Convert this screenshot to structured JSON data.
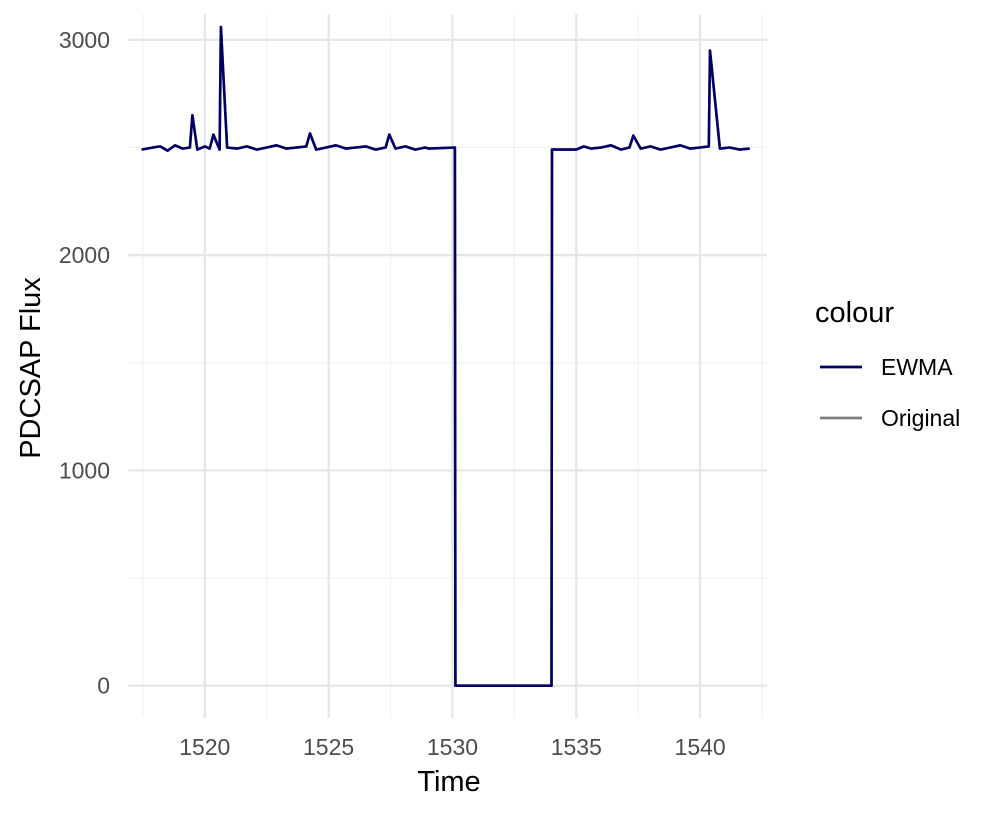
{
  "chart_data": {
    "type": "line",
    "title": "",
    "xlabel": "Time",
    "ylabel": "PDCSAP Flux",
    "xlim": [
      1516.9,
      1542.7
    ],
    "ylim": [
      -150,
      3120
    ],
    "x_ticks": [
      1520,
      1525,
      1530,
      1535,
      1540
    ],
    "x_minor_ticks": [
      1517.5,
      1522.5,
      1527.5,
      1532.5,
      1537.5,
      1542.5
    ],
    "y_ticks": [
      0,
      1000,
      2000,
      3000
    ],
    "y_minor_ticks": [
      500,
      1500,
      2500
    ],
    "grid": true,
    "legend": {
      "title": "colour",
      "position": "right",
      "entries": [
        {
          "label": "EWMA",
          "color": "#000066"
        },
        {
          "label": "Original",
          "color": "#808080"
        }
      ]
    },
    "series": [
      {
        "name": "Original",
        "color": "#808080",
        "x": [
          1517.45,
          1517.9,
          1518.2,
          1518.5,
          1518.8,
          1519.1,
          1519.4,
          1519.5,
          1519.7,
          1520.0,
          1520.2,
          1520.35,
          1520.6,
          1520.65,
          1520.9,
          1521.3,
          1521.7,
          1522.1,
          1522.5,
          1522.9,
          1523.3,
          1523.7,
          1524.1,
          1524.25,
          1524.5,
          1524.9,
          1525.3,
          1525.7,
          1526.1,
          1526.5,
          1526.9,
          1527.3,
          1527.45,
          1527.7,
          1528.1,
          1528.5,
          1528.9,
          1529.05,
          1530.1,
          1530.12,
          1530.14,
          1534.0,
          1534.02,
          1534.05,
          1535.0,
          1535.3,
          1535.6,
          1536.0,
          1536.4,
          1536.8,
          1537.15,
          1537.3,
          1537.6,
          1538.0,
          1538.4,
          1538.8,
          1539.2,
          1539.6,
          1540.0,
          1540.35,
          1540.4,
          1540.8,
          1541.2,
          1541.6,
          1542.0
        ],
        "y": [
          2490,
          2500,
          2505,
          2485,
          2510,
          2495,
          2500,
          2650,
          2490,
          2505,
          2495,
          2560,
          2490,
          3060,
          2500,
          2495,
          2505,
          2490,
          2500,
          2510,
          2495,
          2500,
          2505,
          2565,
          2490,
          2500,
          2510,
          2495,
          2500,
          2505,
          2490,
          2500,
          2560,
          2495,
          2505,
          2490,
          2500,
          2495,
          2500,
          0,
          0,
          0,
          2490,
          2490,
          2490,
          2505,
          2495,
          2500,
          2510,
          2490,
          2500,
          2555,
          2495,
          2505,
          2490,
          2500,
          2510,
          2495,
          2500,
          2505,
          2950,
          2495,
          2500,
          2490,
          2495
        ]
      },
      {
        "name": "EWMA",
        "color": "#000066",
        "x": [
          1517.45,
          1517.9,
          1518.2,
          1518.5,
          1518.8,
          1519.1,
          1519.4,
          1519.5,
          1519.7,
          1520.0,
          1520.2,
          1520.35,
          1520.6,
          1520.65,
          1520.9,
          1521.3,
          1521.7,
          1522.1,
          1522.5,
          1522.9,
          1523.3,
          1523.7,
          1524.1,
          1524.25,
          1524.5,
          1524.9,
          1525.3,
          1525.7,
          1526.1,
          1526.5,
          1526.9,
          1527.3,
          1527.45,
          1527.7,
          1528.1,
          1528.5,
          1528.9,
          1529.05,
          1530.1,
          1530.12,
          1530.14,
          1534.0,
          1534.02,
          1534.05,
          1535.0,
          1535.3,
          1535.6,
          1536.0,
          1536.4,
          1536.8,
          1537.15,
          1537.3,
          1537.6,
          1538.0,
          1538.4,
          1538.8,
          1539.2,
          1539.6,
          1540.0,
          1540.35,
          1540.4,
          1540.8,
          1541.2,
          1541.6,
          1542.0
        ],
        "y": [
          2490,
          2500,
          2505,
          2485,
          2510,
          2495,
          2500,
          2650,
          2490,
          2505,
          2495,
          2560,
          2490,
          3060,
          2500,
          2495,
          2505,
          2490,
          2500,
          2510,
          2495,
          2500,
          2505,
          2565,
          2490,
          2500,
          2510,
          2495,
          2500,
          2505,
          2490,
          2500,
          2560,
          2495,
          2505,
          2490,
          2500,
          2495,
          2500,
          0,
          0,
          0,
          2490,
          2490,
          2490,
          2505,
          2495,
          2500,
          2510,
          2490,
          2500,
          2555,
          2495,
          2505,
          2490,
          2500,
          2510,
          2495,
          2500,
          2505,
          2950,
          2495,
          2500,
          2490,
          2495
        ]
      }
    ]
  }
}
